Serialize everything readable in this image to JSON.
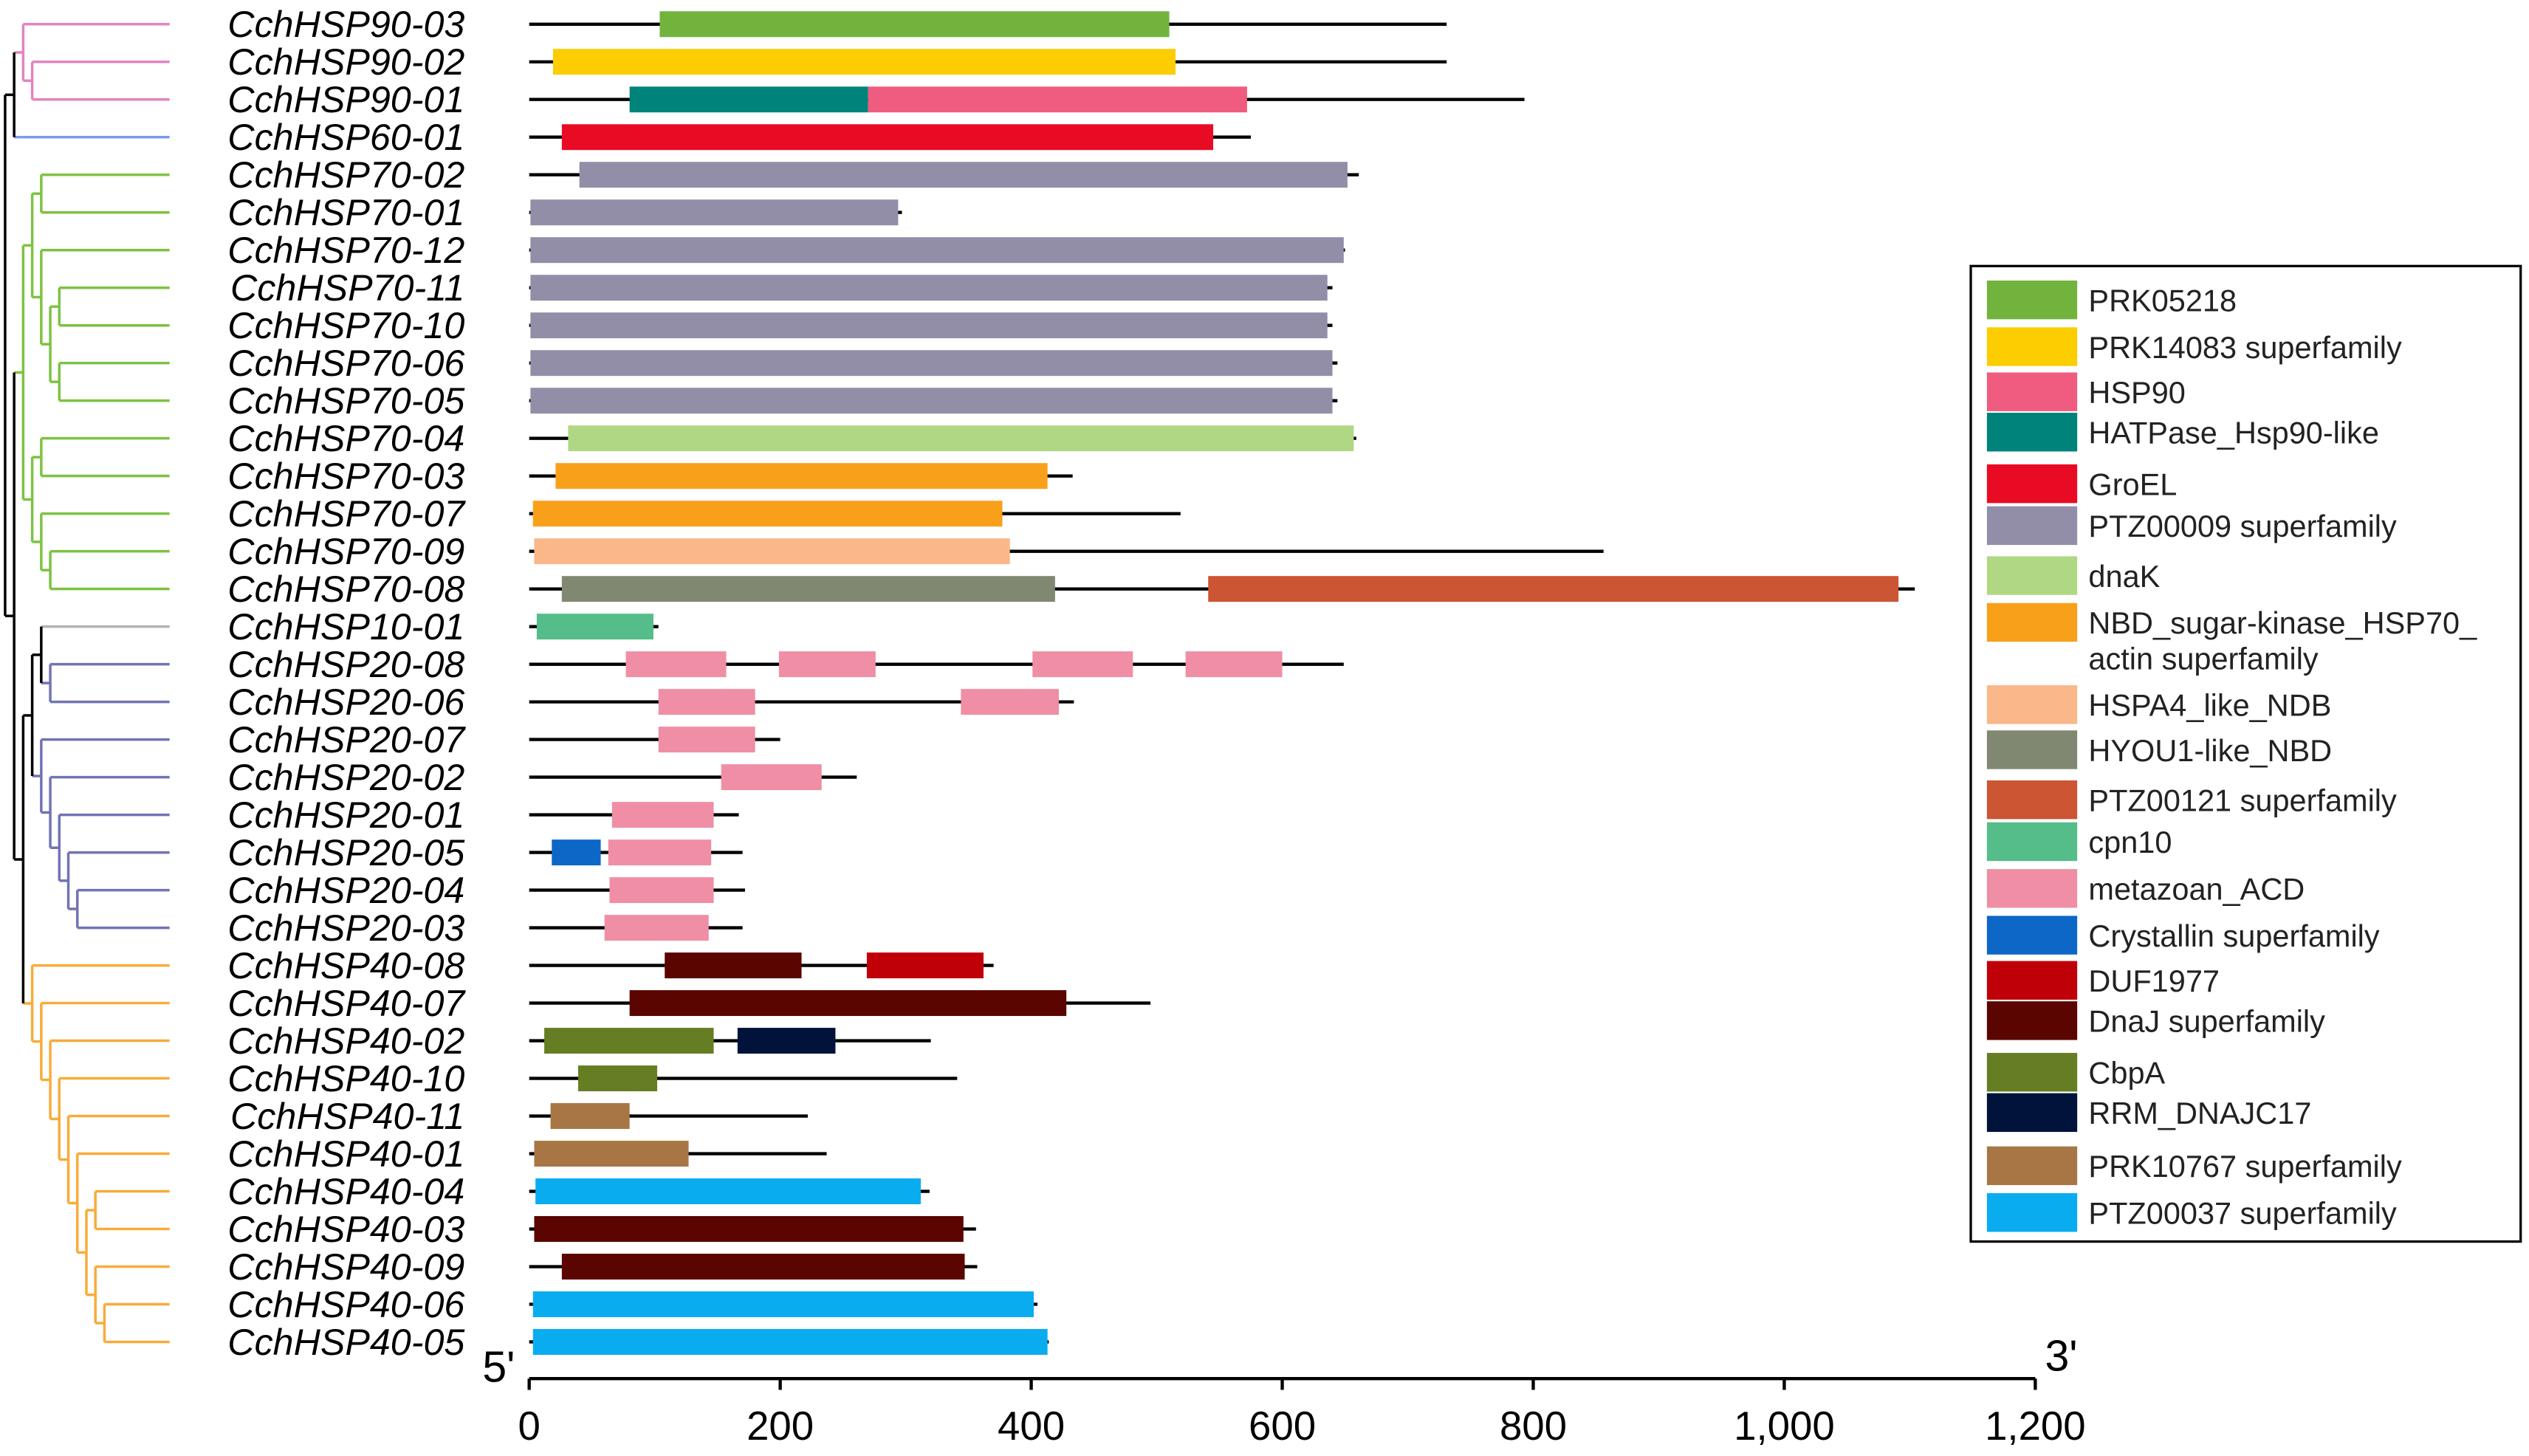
{
  "axis": {
    "min": 0,
    "max": 1200,
    "ticks": [
      "0",
      "200",
      "400",
      "600",
      "800",
      "1,000",
      "1,200"
    ],
    "tick_values": [
      0,
      200,
      400,
      600,
      800,
      1000,
      1200
    ],
    "left_end": "5'",
    "right_end": "3'"
  },
  "clade_colors": {
    "CchHSP90": "#e384c0",
    "CchHSP60": "#7b9af0",
    "CchHSP70": "#7dc242",
    "CchHSP10": "#b3b3b3",
    "CchHSP20": "#7173b5",
    "CchHSP40": "#f7ac3b",
    "mixed": "#000000"
  },
  "legend": [
    {
      "label": "PRK05218",
      "color": "#72b33e"
    },
    {
      "label": "PRK14083 superfamily",
      "color": "#fccd00"
    },
    {
      "label": "HSP90",
      "color": "#ef5c80"
    },
    {
      "label": "HATPase_Hsp90-like",
      "color": "#00837a"
    },
    {
      "label": "GroEL",
      "color": "#e90b24"
    },
    {
      "label": "PTZ00009 superfamily",
      "color": "#928ea8"
    },
    {
      "label": "dnaK",
      "color": "#b0d884"
    },
    {
      "label": "NBD_sugar-kinase_HSP70_",
      "label2": "actin superfamily",
      "color": "#f9a01b"
    },
    {
      "label": "HSPA4_like_NDB",
      "color": "#fab789"
    },
    {
      "label": "HYOU1-like_NBD",
      "color": "#818872"
    },
    {
      "label": "PTZ00121 superfamily",
      "color": "#cc5533"
    },
    {
      "label": "cpn10",
      "color": "#55bd8a"
    },
    {
      "label": "metazoan_ACD",
      "color": "#ef8ea5"
    },
    {
      "label": "Crystallin superfamily",
      "color": "#0d67c6"
    },
    {
      "label": "DUF1977",
      "color": "#c00008"
    },
    {
      "label": "DnaJ superfamily",
      "color": "#5a0500"
    },
    {
      "label": "CbpA",
      "color": "#667e23"
    },
    {
      "label": "RRM_DNAJC17",
      "color": "#01133a"
    },
    {
      "label": "PRK10767 superfamily",
      "color": "#a87645"
    },
    {
      "label": "PTZ00037 superfamily",
      "color": "#0aacf0"
    }
  ],
  "genes": [
    {
      "name": "CchHSP90-03",
      "length": 731,
      "domains": [
        {
          "type": "PRK05218",
          "start": 104,
          "end": 510
        }
      ]
    },
    {
      "name": "CchHSP90-02",
      "length": 731,
      "domains": [
        {
          "type": "PRK14083 superfamily",
          "start": 19,
          "end": 515
        }
      ]
    },
    {
      "name": "CchHSP90-01",
      "length": 793,
      "domains": [
        {
          "type": "HATPase_Hsp90-like",
          "start": 80,
          "end": 270
        },
        {
          "type": "HSP90",
          "start": 270,
          "end": 572
        }
      ]
    },
    {
      "name": "CchHSP60-01",
      "length": 575,
      "domains": [
        {
          "type": "GroEL",
          "start": 26,
          "end": 545
        }
      ]
    },
    {
      "name": "CchHSP70-02",
      "length": 661,
      "domains": [
        {
          "type": "PTZ00009 superfamily",
          "start": 40,
          "end": 652
        }
      ]
    },
    {
      "name": "CchHSP70-01",
      "length": 297,
      "domains": [
        {
          "type": "PTZ00009 superfamily",
          "start": 1,
          "end": 294
        }
      ]
    },
    {
      "name": "CchHSP70-12",
      "length": 650,
      "domains": [
        {
          "type": "PTZ00009 superfamily",
          "start": 1,
          "end": 649
        }
      ]
    },
    {
      "name": "CchHSP70-11",
      "length": 640,
      "domains": [
        {
          "type": "PTZ00009 superfamily",
          "start": 1,
          "end": 636
        }
      ]
    },
    {
      "name": "CchHSP70-10",
      "length": 640,
      "domains": [
        {
          "type": "PTZ00009 superfamily",
          "start": 1,
          "end": 636
        }
      ]
    },
    {
      "name": "CchHSP70-06",
      "length": 644,
      "domains": [
        {
          "type": "PTZ00009 superfamily",
          "start": 1,
          "end": 640
        }
      ]
    },
    {
      "name": "CchHSP70-05",
      "length": 644,
      "domains": [
        {
          "type": "PTZ00009 superfamily",
          "start": 1,
          "end": 640
        }
      ]
    },
    {
      "name": "CchHSP70-04",
      "length": 659,
      "domains": [
        {
          "type": "dnaK",
          "start": 31,
          "end": 657
        }
      ]
    },
    {
      "name": "CchHSP70-03",
      "length": 433,
      "domains": [
        {
          "type": "NBD_sugar-kinase_HSP70_actin superfamily",
          "start": 21,
          "end": 413
        }
      ]
    },
    {
      "name": "CchHSP70-07",
      "length": 519,
      "domains": [
        {
          "type": "NBD_sugar-kinase_HSP70_actin superfamily",
          "start": 3,
          "end": 377
        }
      ]
    },
    {
      "name": "CchHSP70-09",
      "length": 856,
      "domains": [
        {
          "type": "HSPA4_like_NDB",
          "start": 4,
          "end": 383
        }
      ]
    },
    {
      "name": "CchHSP70-08",
      "length": 1104,
      "domains": [
        {
          "type": "HYOU1-like_NBD",
          "start": 26,
          "end": 419
        },
        {
          "type": "PTZ00121 superfamily",
          "start": 541,
          "end": 1091
        }
      ]
    },
    {
      "name": "CchHSP10-01",
      "length": 103,
      "domains": [
        {
          "type": "cpn10",
          "start": 6,
          "end": 99
        }
      ]
    },
    {
      "name": "CchHSP20-08",
      "length": 649,
      "domains": [
        {
          "type": "metazoan_ACD",
          "start": 77,
          "end": 157
        },
        {
          "type": "metazoan_ACD",
          "start": 199,
          "end": 276
        },
        {
          "type": "metazoan_ACD",
          "start": 401,
          "end": 481
        },
        {
          "type": "metazoan_ACD",
          "start": 523,
          "end": 600
        }
      ]
    },
    {
      "name": "CchHSP20-06",
      "length": 434,
      "domains": [
        {
          "type": "metazoan_ACD",
          "start": 103,
          "end": 180
        },
        {
          "type": "metazoan_ACD",
          "start": 344,
          "end": 422
        }
      ]
    },
    {
      "name": "CchHSP20-07",
      "length": 200,
      "domains": [
        {
          "type": "metazoan_ACD",
          "start": 103,
          "end": 180
        }
      ]
    },
    {
      "name": "CchHSP20-02",
      "length": 261,
      "domains": [
        {
          "type": "metazoan_ACD",
          "start": 153,
          "end": 233
        }
      ]
    },
    {
      "name": "CchHSP20-01",
      "length": 167,
      "domains": [
        {
          "type": "metazoan_ACD",
          "start": 66,
          "end": 147
        }
      ]
    },
    {
      "name": "CchHSP20-05",
      "length": 170,
      "domains": [
        {
          "type": "Crystallin superfamily",
          "start": 18,
          "end": 57
        },
        {
          "type": "metazoan_ACD",
          "start": 63,
          "end": 145
        }
      ]
    },
    {
      "name": "CchHSP20-04",
      "length": 172,
      "domains": [
        {
          "type": "metazoan_ACD",
          "start": 64,
          "end": 147
        }
      ]
    },
    {
      "name": "CchHSP20-03",
      "length": 170,
      "domains": [
        {
          "type": "metazoan_ACD",
          "start": 60,
          "end": 143
        }
      ]
    },
    {
      "name": "CchHSP40-08",
      "length": 370,
      "domains": [
        {
          "type": "DnaJ superfamily",
          "start": 108,
          "end": 217
        },
        {
          "type": "DUF1977",
          "start": 269,
          "end": 362
        }
      ]
    },
    {
      "name": "CchHSP40-07",
      "length": 495,
      "domains": [
        {
          "type": "DnaJ superfamily",
          "start": 80,
          "end": 428
        }
      ]
    },
    {
      "name": "CchHSP40-02",
      "length": 320,
      "domains": [
        {
          "type": "CbpA",
          "start": 12,
          "end": 147
        },
        {
          "type": "RRM_DNAJC17",
          "start": 166,
          "end": 244
        }
      ]
    },
    {
      "name": "CchHSP40-10",
      "length": 341,
      "domains": [
        {
          "type": "CbpA",
          "start": 39,
          "end": 102
        }
      ]
    },
    {
      "name": "CchHSP40-11",
      "length": 222,
      "domains": [
        {
          "type": "PRK10767 superfamily",
          "start": 17,
          "end": 80
        }
      ]
    },
    {
      "name": "CchHSP40-01",
      "length": 237,
      "domains": [
        {
          "type": "PRK10767 superfamily",
          "start": 4,
          "end": 127
        }
      ]
    },
    {
      "name": "CchHSP40-04",
      "length": 319,
      "domains": [
        {
          "type": "PTZ00037 superfamily",
          "start": 5,
          "end": 312
        }
      ]
    },
    {
      "name": "CchHSP40-03",
      "length": 356,
      "domains": [
        {
          "type": "DnaJ superfamily",
          "start": 4,
          "end": 346
        }
      ]
    },
    {
      "name": "CchHSP40-09",
      "length": 357,
      "domains": [
        {
          "type": "DnaJ superfamily",
          "start": 26,
          "end": 347
        }
      ]
    },
    {
      "name": "CchHSP40-06",
      "length": 405,
      "domains": [
        {
          "type": "PTZ00037 superfamily",
          "start": 3,
          "end": 402
        }
      ]
    },
    {
      "name": "CchHSP40-05",
      "length": 414,
      "domains": [
        {
          "type": "PTZ00037 superfamily",
          "start": 3,
          "end": 413
        }
      ]
    }
  ],
  "tree": [
    [
      [
        [
          "CchHSP90-03",
          [
            "CchHSP90-02",
            "CchHSP90-01"
          ]
        ],
        "CchHSP60-01"
      ]
    ],
    [
      [
        [
          [
            "CchHSP70-02",
            "CchHSP70-01"
          ],
          [
            "CchHSP70-12",
            [
              [
                "CchHSP70-11",
                "CchHSP70-10"
              ],
              [
                "CchHSP70-06",
                "CchHSP70-05"
              ]
            ]
          ]
        ],
        [
          [
            "CchHSP70-04",
            "CchHSP70-03"
          ],
          [
            "CchHSP70-07",
            [
              "CchHSP70-09",
              "CchHSP70-08"
            ]
          ]
        ]
      ],
      [
        [
          [
            "CchHSP10-01",
            [
              "CchHSP20-08",
              "CchHSP20-06"
            ]
          ],
          [
            "CchHSP20-07",
            [
              "CchHSP20-02",
              [
                "CchHSP20-01",
                [
                  "CchHSP20-05",
                  [
                    "CchHSP20-04",
                    "CchHSP20-03"
                  ]
                ]
              ]
            ]
          ]
        ],
        [
          "CchHSP40-08",
          [
            "CchHSP40-07",
            [
              "CchHSP40-02",
              [
                "CchHSP40-10",
                [
                  "CchHSP40-11",
                  [
                    "CchHSP40-01",
                    [
                      [
                        "CchHSP40-04",
                        "CchHSP40-03"
                      ],
                      [
                        "CchHSP40-09",
                        [
                          "CchHSP40-06",
                          "CchHSP40-05"
                        ]
                      ]
                    ]
                  ]
                ]
              ]
            ]
          ]
        ]
      ]
    ]
  ]
}
